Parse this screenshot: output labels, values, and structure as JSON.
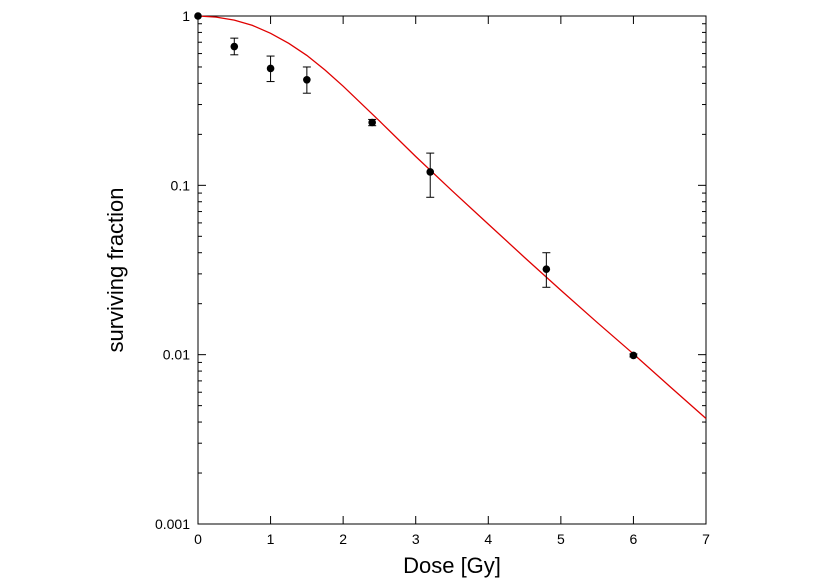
{
  "chart_data": {
    "type": "scatter",
    "xlabel": "Dose [Gy]",
    "ylabel": "surviving fraction",
    "xlim": [
      0,
      7
    ],
    "ylim": [
      0.001,
      1
    ],
    "y_scale": "log",
    "grid": false,
    "x_ticks": [
      "0",
      "1",
      "2",
      "3",
      "4",
      "5",
      "6",
      "7"
    ],
    "y_ticks": [
      "0.001",
      "0.01",
      "0.1",
      "1"
    ],
    "series": [
      {
        "kind": "points-with-error-bars",
        "color": "#000000",
        "points": [
          {
            "x": 0.0,
            "y": 1.0,
            "err_low": 1.0,
            "err_high": 1.0
          },
          {
            "x": 0.5,
            "y": 0.66,
            "err_low": 0.59,
            "err_high": 0.74
          },
          {
            "x": 1.0,
            "y": 0.49,
            "err_low": 0.41,
            "err_high": 0.58
          },
          {
            "x": 1.5,
            "y": 0.42,
            "err_low": 0.35,
            "err_high": 0.5
          },
          {
            "x": 2.4,
            "y": 0.235,
            "err_low": 0.225,
            "err_high": 0.245
          },
          {
            "x": 3.2,
            "y": 0.12,
            "err_low": 0.085,
            "err_high": 0.155
          },
          {
            "x": 4.8,
            "y": 0.032,
            "err_low": 0.025,
            "err_high": 0.04
          },
          {
            "x": 6.0,
            "y": 0.0099,
            "err_low": 0.0097,
            "err_high": 0.0101
          }
        ]
      },
      {
        "kind": "fit-curve",
        "color": "#e00000",
        "x": [
          0,
          0.25,
          0.5,
          0.75,
          1.0,
          1.25,
          1.5,
          1.75,
          2.0,
          2.5,
          3.0,
          3.5,
          4.0,
          4.5,
          5.0,
          5.5,
          6.0,
          6.5,
          7.0
        ],
        "y": [
          1.0,
          0.985,
          0.945,
          0.88,
          0.79,
          0.69,
          0.585,
          0.48,
          0.385,
          0.24,
          0.148,
          0.093,
          0.059,
          0.0375,
          0.024,
          0.0155,
          0.0101,
          0.0065,
          0.0042
        ]
      }
    ]
  }
}
